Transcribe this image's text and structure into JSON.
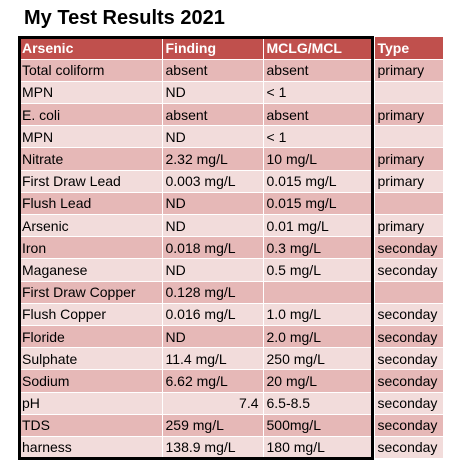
{
  "title": "My Test Results 2021",
  "table": {
    "headers": [
      "Arsenic",
      "Finding",
      "MCLG/MCL",
      "Type"
    ],
    "rows": [
      {
        "name": "Total coliform",
        "finding": "absent",
        "mcl": "absent",
        "type": "primary"
      },
      {
        "name": "MPN",
        "finding": "ND",
        "mcl": "< 1",
        "type": ""
      },
      {
        "name": "E. coli",
        "finding": "absent",
        "mcl": "absent",
        "type": "primary"
      },
      {
        "name": "MPN",
        "finding": "ND",
        "mcl": "< 1",
        "type": ""
      },
      {
        "name": "Nitrate",
        "finding": "2.32 mg/L",
        "mcl": "10 mg/L",
        "type": "primary"
      },
      {
        "name": "First Draw Lead",
        "finding": "0.003 mg/L",
        "mcl": "0.015 mg/L",
        "type": "primary"
      },
      {
        "name": "Flush Lead",
        "finding": "ND",
        "mcl": "0.015 mg/L",
        "type": ""
      },
      {
        "name": "Arsenic",
        "finding": "ND",
        "mcl": "0.01 mg/L",
        "type": "primary"
      },
      {
        "name": "Iron",
        "finding": "0.018 mg/L",
        "mcl": "0.3 mg/L",
        "type": "seconday"
      },
      {
        "name": "Maganese",
        "finding": "ND",
        "mcl": "0.5 mg/L",
        "type": "seconday"
      },
      {
        "name": "First Draw Copper",
        "finding": "0.128 mg/L",
        "mcl": "",
        "type": ""
      },
      {
        "name": " Flush Copper",
        "finding": "0.016 mg/L",
        "mcl": "1.0 mg/L",
        "type": "seconday"
      },
      {
        "name": "Floride",
        "finding": "ND",
        "mcl": "2.0 mg/L",
        "type": "seconday"
      },
      {
        "name": "Sulphate",
        "finding": "11.4 mg/L",
        "mcl": "250 mg/L",
        "type": "seconday"
      },
      {
        "name": "Sodium",
        "finding": "6.62 mg/L",
        "mcl": "20 mg/L",
        "type": "seconday"
      },
      {
        "name": "pH",
        "finding": "7.4",
        "mcl": "6.5-8.5",
        "type": "seconday",
        "finding_align": "right"
      },
      {
        "name": "TDS",
        "finding": "259 mg/L",
        "mcl": "500mg/L",
        "type": "seconday"
      },
      {
        "name": "harness",
        "finding": "138.9 mg/L",
        "mcl": "180 mg/L",
        "type": "seconday"
      }
    ]
  },
  "colors": {
    "header_bg": "#c0504d",
    "row_dark": "#e6b8b7",
    "row_light": "#f2dcdb",
    "frame": "#000000"
  }
}
